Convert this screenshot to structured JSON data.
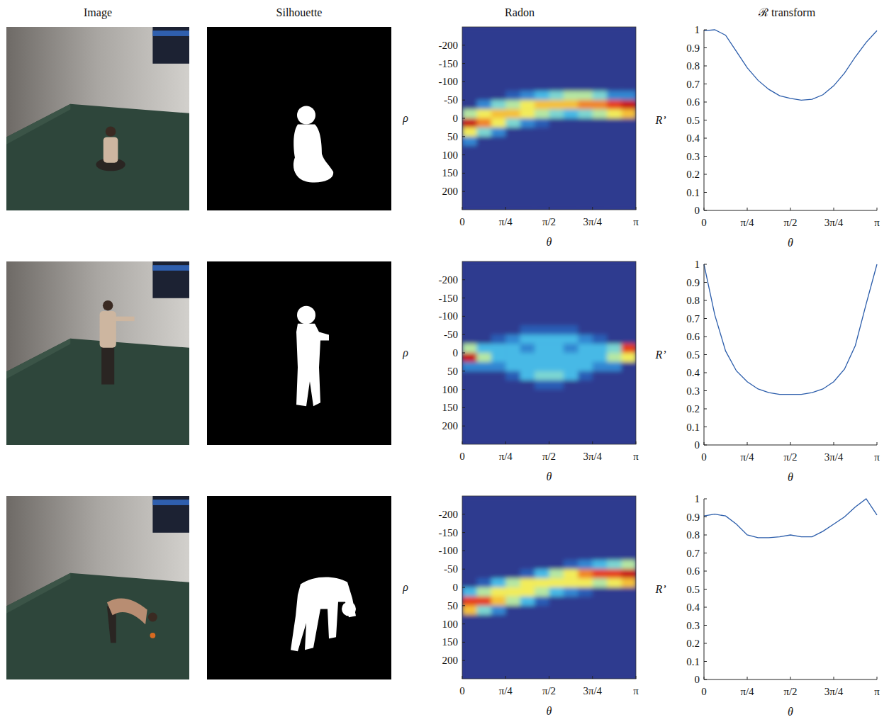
{
  "column_titles": [
    "Image",
    "Silhouette",
    "Radon",
    "ℛ transform"
  ],
  "chart_data": [
    {
      "type": "heatmap",
      "xlabel": "θ",
      "ylabel": "ρ",
      "xlim": [
        0,
        3.1416
      ],
      "ylim": [
        -250,
        250
      ],
      "xticks": [
        0,
        {
          "value": 0.7854,
          "label": "π/4"
        },
        {
          "value": 1.5708,
          "label": "π/2"
        },
        {
          "value": 2.3562,
          "label": "3π/4"
        },
        {
          "value": 3.1416,
          "label": "π"
        }
      ],
      "yticks": [
        -200,
        -150,
        -100,
        -50,
        0,
        50,
        100,
        150,
        200
      ],
      "cells": [
        [
          0,
          0,
          0,
          0,
          0,
          0,
          0,
          0,
          0,
          0,
          0,
          0
        ],
        [
          0,
          0,
          0,
          0,
          0,
          0,
          0,
          0,
          0,
          0,
          0,
          0
        ],
        [
          0,
          0,
          0,
          0,
          0,
          0,
          0,
          0,
          0,
          0,
          0,
          0
        ],
        [
          0,
          0,
          0,
          0,
          0,
          0,
          0,
          0,
          0,
          0,
          0,
          0
        ],
        [
          0,
          0,
          0,
          0,
          0,
          0,
          0,
          0,
          0,
          0,
          0,
          0
        ],
        [
          0,
          0,
          0,
          0,
          0,
          0,
          0,
          0,
          0,
          0,
          0,
          0
        ],
        [
          0,
          0,
          0,
          0,
          0,
          0,
          0,
          0,
          0,
          0,
          0,
          0
        ],
        [
          0,
          0,
          0,
          0.1,
          0.2,
          0.3,
          0.4,
          0.5,
          0.5,
          0.4,
          0.2,
          0.2
        ],
        [
          0,
          0.2,
          0.4,
          0.5,
          0.6,
          0.7,
          0.7,
          0.7,
          0.8,
          0.8,
          0.9,
          1.0
        ],
        [
          0.5,
          0.6,
          0.7,
          0.7,
          0.6,
          0.5,
          0.4,
          0.3,
          0.4,
          0.5,
          0.6,
          0.7
        ],
        [
          1.0,
          0.8,
          0.6,
          0.4,
          0.2,
          0.1,
          0,
          0,
          0,
          0,
          0,
          0
        ],
        [
          0.6,
          0.4,
          0.2,
          0,
          0,
          0,
          0,
          0,
          0,
          0,
          0,
          0
        ],
        [
          0.2,
          0,
          0,
          0,
          0,
          0,
          0,
          0,
          0,
          0,
          0,
          0
        ],
        [
          0,
          0,
          0,
          0,
          0,
          0,
          0,
          0,
          0,
          0,
          0,
          0
        ],
        [
          0,
          0,
          0,
          0,
          0,
          0,
          0,
          0,
          0,
          0,
          0,
          0
        ],
        [
          0,
          0,
          0,
          0,
          0,
          0,
          0,
          0,
          0,
          0,
          0,
          0
        ],
        [
          0,
          0,
          0,
          0,
          0,
          0,
          0,
          0,
          0,
          0,
          0,
          0
        ],
        [
          0,
          0,
          0,
          0,
          0,
          0,
          0,
          0,
          0,
          0,
          0,
          0
        ],
        [
          0,
          0,
          0,
          0,
          0,
          0,
          0,
          0,
          0,
          0,
          0,
          0
        ],
        [
          0,
          0,
          0,
          0,
          0,
          0,
          0,
          0,
          0,
          0,
          0,
          0
        ]
      ]
    },
    {
      "type": "line",
      "ylabel": "R’",
      "xlabel": "θ",
      "color": "#2a5caa",
      "xlim": [
        0,
        3.1416
      ],
      "ylim": [
        0,
        1
      ],
      "xticks": [
        0,
        {
          "value": 0.7854,
          "label": "π/4"
        },
        {
          "value": 1.5708,
          "label": "π/2"
        },
        {
          "value": 2.3562,
          "label": "3π/4"
        },
        {
          "value": 3.1416,
          "label": "π"
        }
      ],
      "yticks": [
        0,
        0.1,
        0.2,
        0.3,
        0.4,
        0.5,
        0.6,
        0.7,
        0.8,
        0.9,
        1
      ],
      "x": [
        0,
        0.1963,
        0.3927,
        0.589,
        0.7854,
        0.9817,
        1.1781,
        1.3744,
        1.5708,
        1.7671,
        1.9635,
        2.1598,
        2.3562,
        2.5525,
        2.7489,
        2.9452,
        3.1416
      ],
      "values": [
        0.995,
        1.0,
        0.97,
        0.88,
        0.79,
        0.72,
        0.67,
        0.635,
        0.62,
        0.61,
        0.615,
        0.64,
        0.69,
        0.76,
        0.85,
        0.93,
        0.995
      ]
    },
    {
      "type": "heatmap",
      "xlabel": "θ",
      "ylabel": "ρ",
      "xlim": [
        0,
        3.1416
      ],
      "ylim": [
        -250,
        250
      ],
      "xticks": [
        0,
        {
          "value": 0.7854,
          "label": "π/4"
        },
        {
          "value": 1.5708,
          "label": "π/2"
        },
        {
          "value": 2.3562,
          "label": "3π/4"
        },
        {
          "value": 3.1416,
          "label": "π"
        }
      ],
      "yticks": [
        -200,
        -150,
        -100,
        -50,
        0,
        50,
        100,
        150,
        200
      ],
      "cells": [
        [
          0,
          0,
          0,
          0,
          0,
          0,
          0,
          0,
          0,
          0,
          0,
          0
        ],
        [
          0,
          0,
          0,
          0,
          0,
          0,
          0,
          0,
          0,
          0,
          0,
          0
        ],
        [
          0,
          0,
          0,
          0,
          0,
          0,
          0,
          0,
          0,
          0,
          0,
          0
        ],
        [
          0,
          0,
          0,
          0,
          0,
          0,
          0,
          0,
          0,
          0,
          0,
          0
        ],
        [
          0,
          0,
          0,
          0,
          0,
          0,
          0,
          0,
          0,
          0,
          0,
          0
        ],
        [
          0,
          0,
          0,
          0,
          0,
          0,
          0,
          0,
          0,
          0,
          0,
          0
        ],
        [
          0,
          0,
          0,
          0,
          0,
          0,
          0,
          0,
          0,
          0,
          0,
          0
        ],
        [
          0,
          0,
          0,
          0,
          0.1,
          0.1,
          0.1,
          0.1,
          0,
          0,
          0,
          0
        ],
        [
          0,
          0,
          0.1,
          0.2,
          0.3,
          0.3,
          0.3,
          0.3,
          0.2,
          0.1,
          0,
          0
        ],
        [
          0.5,
          0.3,
          0.3,
          0.3,
          0.2,
          0.3,
          0.3,
          0.2,
          0.3,
          0.3,
          0.4,
          0.9
        ],
        [
          1.0,
          0.5,
          0.3,
          0.3,
          0.3,
          0.3,
          0.3,
          0.3,
          0.3,
          0.3,
          0.5,
          0.6
        ],
        [
          0.2,
          0.2,
          0.2,
          0.3,
          0.3,
          0.3,
          0.3,
          0.3,
          0.3,
          0.2,
          0.2,
          0
        ],
        [
          0,
          0,
          0,
          0.1,
          0.3,
          0.4,
          0.4,
          0.3,
          0.1,
          0,
          0,
          0
        ],
        [
          0,
          0,
          0,
          0,
          0,
          0.1,
          0.1,
          0,
          0,
          0,
          0,
          0
        ],
        [
          0,
          0,
          0,
          0,
          0,
          0,
          0,
          0,
          0,
          0,
          0,
          0
        ],
        [
          0,
          0,
          0,
          0,
          0,
          0,
          0,
          0,
          0,
          0,
          0,
          0
        ],
        [
          0,
          0,
          0,
          0,
          0,
          0,
          0,
          0,
          0,
          0,
          0,
          0
        ],
        [
          0,
          0,
          0,
          0,
          0,
          0,
          0,
          0,
          0,
          0,
          0,
          0
        ],
        [
          0,
          0,
          0,
          0,
          0,
          0,
          0,
          0,
          0,
          0,
          0,
          0
        ],
        [
          0,
          0,
          0,
          0,
          0,
          0,
          0,
          0,
          0,
          0,
          0,
          0
        ]
      ]
    },
    {
      "type": "line",
      "ylabel": "R’",
      "xlabel": "θ",
      "color": "#2a5caa",
      "xlim": [
        0,
        3.1416
      ],
      "ylim": [
        0,
        1
      ],
      "xticks": [
        0,
        {
          "value": 0.7854,
          "label": "π/4"
        },
        {
          "value": 1.5708,
          "label": "π/2"
        },
        {
          "value": 2.3562,
          "label": "3π/4"
        },
        {
          "value": 3.1416,
          "label": "π"
        }
      ],
      "yticks": [
        0,
        0.1,
        0.2,
        0.3,
        0.4,
        0.5,
        0.6,
        0.7,
        0.8,
        0.9,
        1
      ],
      "x": [
        0,
        0.1963,
        0.3927,
        0.589,
        0.7854,
        0.9817,
        1.1781,
        1.3744,
        1.5708,
        1.7671,
        1.9635,
        2.1598,
        2.3562,
        2.5525,
        2.7489,
        2.9452,
        3.1416
      ],
      "values": [
        1.0,
        0.72,
        0.52,
        0.41,
        0.35,
        0.31,
        0.29,
        0.28,
        0.28,
        0.28,
        0.29,
        0.31,
        0.35,
        0.42,
        0.55,
        0.78,
        1.0
      ]
    },
    {
      "type": "heatmap",
      "xlabel": "θ",
      "ylabel": "ρ",
      "xlim": [
        0,
        3.1416
      ],
      "ylim": [
        -250,
        250
      ],
      "xticks": [
        0,
        {
          "value": 0.7854,
          "label": "π/4"
        },
        {
          "value": 1.5708,
          "label": "π/2"
        },
        {
          "value": 2.3562,
          "label": "3π/4"
        },
        {
          "value": 3.1416,
          "label": "π"
        }
      ],
      "yticks": [
        -200,
        -150,
        -100,
        -50,
        0,
        50,
        100,
        150,
        200
      ],
      "cells": [
        [
          0,
          0,
          0,
          0,
          0,
          0,
          0,
          0,
          0,
          0,
          0,
          0
        ],
        [
          0,
          0,
          0,
          0,
          0,
          0,
          0,
          0,
          0,
          0,
          0,
          0
        ],
        [
          0,
          0,
          0,
          0,
          0,
          0,
          0,
          0,
          0,
          0,
          0,
          0
        ],
        [
          0,
          0,
          0,
          0,
          0,
          0,
          0,
          0,
          0,
          0,
          0,
          0
        ],
        [
          0,
          0,
          0,
          0,
          0,
          0,
          0,
          0,
          0,
          0,
          0,
          0
        ],
        [
          0,
          0,
          0,
          0,
          0,
          0,
          0,
          0,
          0,
          0,
          0,
          0
        ],
        [
          0,
          0,
          0,
          0,
          0,
          0,
          0,
          0,
          0,
          0,
          0,
          0
        ],
        [
          0,
          0,
          0,
          0,
          0,
          0,
          0,
          0.1,
          0.2,
          0.3,
          0.4,
          0.5
        ],
        [
          0,
          0,
          0,
          0,
          0.1,
          0.3,
          0.5,
          0.6,
          0.8,
          0.9,
          0.9,
          1.0
        ],
        [
          0,
          0.1,
          0.3,
          0.5,
          0.6,
          0.6,
          0.6,
          0.6,
          0.6,
          0.5,
          0.6,
          0.7
        ],
        [
          0.3,
          0.5,
          0.6,
          0.6,
          0.6,
          0.5,
          0.3,
          0.2,
          0.1,
          0,
          0,
          0
        ],
        [
          0.9,
          0.9,
          0.7,
          0.5,
          0.3,
          0.1,
          0,
          0,
          0,
          0,
          0,
          0
        ],
        [
          0.7,
          0.4,
          0.2,
          0,
          0,
          0,
          0,
          0,
          0,
          0,
          0,
          0
        ],
        [
          0,
          0,
          0,
          0,
          0,
          0,
          0,
          0,
          0,
          0,
          0,
          0
        ],
        [
          0,
          0,
          0,
          0,
          0,
          0,
          0,
          0,
          0,
          0,
          0,
          0
        ],
        [
          0,
          0,
          0,
          0,
          0,
          0,
          0,
          0,
          0,
          0,
          0,
          0
        ],
        [
          0,
          0,
          0,
          0,
          0,
          0,
          0,
          0,
          0,
          0,
          0,
          0
        ],
        [
          0,
          0,
          0,
          0,
          0,
          0,
          0,
          0,
          0,
          0,
          0,
          0
        ],
        [
          0,
          0,
          0,
          0,
          0,
          0,
          0,
          0,
          0,
          0,
          0,
          0
        ],
        [
          0,
          0,
          0,
          0,
          0,
          0,
          0,
          0,
          0,
          0,
          0,
          0
        ]
      ]
    },
    {
      "type": "line",
      "ylabel": "R’",
      "xlabel": "θ",
      "color": "#2a5caa",
      "xlim": [
        0,
        3.1416
      ],
      "ylim": [
        0,
        1
      ],
      "xticks": [
        0,
        {
          "value": 0.7854,
          "label": "π/4"
        },
        {
          "value": 1.5708,
          "label": "π/2"
        },
        {
          "value": 2.3562,
          "label": "3π/4"
        },
        {
          "value": 3.1416,
          "label": "π"
        }
      ],
      "yticks": [
        0,
        0.1,
        0.2,
        0.3,
        0.4,
        0.5,
        0.6,
        0.7,
        0.8,
        0.9,
        1
      ],
      "x": [
        0,
        0.1963,
        0.3927,
        0.589,
        0.7854,
        0.9817,
        1.1781,
        1.3744,
        1.5708,
        1.7671,
        1.9635,
        2.1598,
        2.3562,
        2.5525,
        2.7489,
        2.9452,
        3.1416
      ],
      "values": [
        0.905,
        0.915,
        0.905,
        0.86,
        0.8,
        0.785,
        0.785,
        0.79,
        0.8,
        0.79,
        0.79,
        0.82,
        0.86,
        0.9,
        0.955,
        1.0,
        0.91
      ]
    }
  ]
}
